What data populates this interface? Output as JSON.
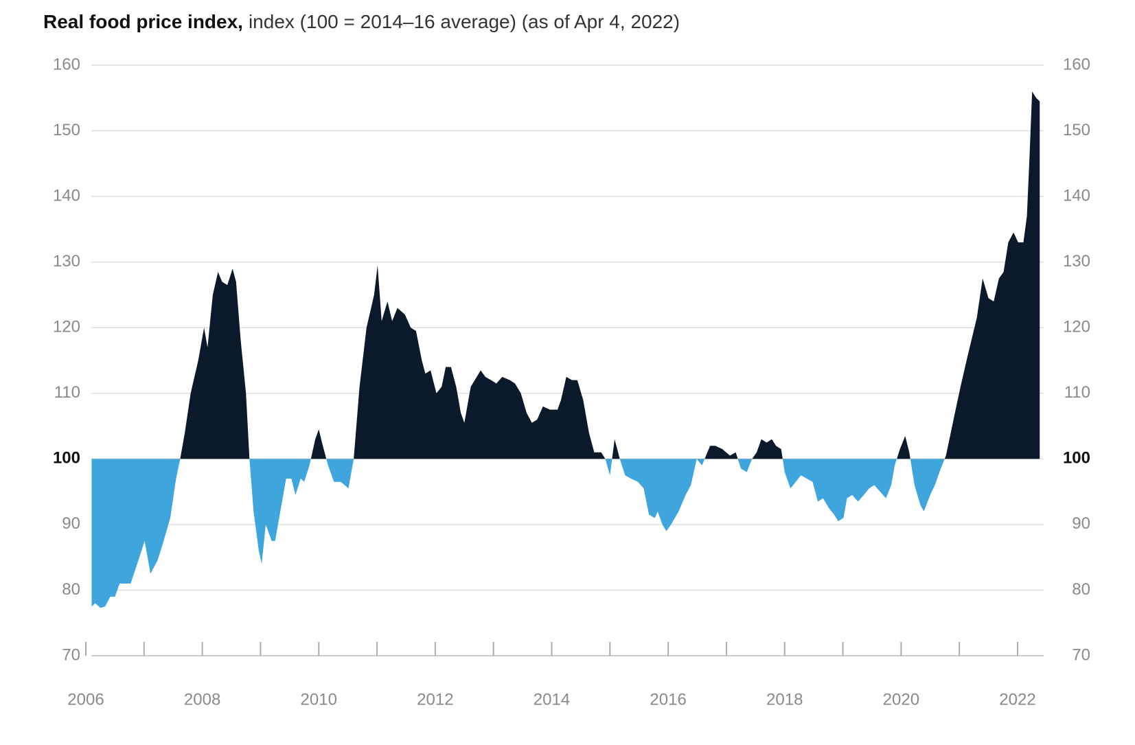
{
  "chart_data": {
    "type": "area",
    "title": "Real food price index,",
    "subtitle": "index (100 = 2014–16 average) (as of Apr 4, 2022)",
    "baseline": 100,
    "color_above": "#0b1a2b",
    "color_below": "#3ea6dd",
    "grid": true,
    "ylim": [
      70,
      160
    ],
    "yticks": [
      70,
      80,
      90,
      100,
      110,
      120,
      130,
      140,
      150,
      160
    ],
    "xlim": [
      2006,
      2022.4
    ],
    "xticks": [
      2006,
      2008,
      2010,
      2012,
      2014,
      2016,
      2018,
      2020,
      2022
    ],
    "xminorticks": [
      2007,
      2009,
      2011,
      2013,
      2015,
      2017,
      2019,
      2021
    ],
    "x": [
      2006.1,
      2006.16,
      2006.25,
      2006.33,
      2006.42,
      2006.5,
      2006.58,
      2006.77,
      2006.92,
      2007.01,
      2007.11,
      2007.23,
      2007.32,
      2007.45,
      2007.55,
      2007.62,
      2007.7,
      2007.8,
      2007.93,
      2008.03,
      2008.09,
      2008.18,
      2008.27,
      2008.34,
      2008.43,
      2008.52,
      2008.58,
      2008.66,
      2008.75,
      2008.81,
      2008.88,
      2008.97,
      2009.02,
      2009.09,
      2009.19,
      2009.25,
      2009.34,
      2009.44,
      2009.53,
      2009.6,
      2009.69,
      2009.75,
      2009.84,
      2009.94,
      2010.0,
      2010.07,
      2010.16,
      2010.26,
      2010.38,
      2010.51,
      2010.6,
      2010.7,
      2010.82,
      2010.95,
      2011.01,
      2011.08,
      2011.18,
      2011.26,
      2011.35,
      2011.48,
      2011.58,
      2011.67,
      2011.77,
      2011.83,
      2011.92,
      2012.02,
      2012.11,
      2012.18,
      2012.27,
      2012.36,
      2012.44,
      2012.5,
      2012.61,
      2012.78,
      2012.86,
      2012.96,
      2013.05,
      2013.15,
      2013.28,
      2013.37,
      2013.47,
      2013.57,
      2013.66,
      2013.75,
      2013.85,
      2013.97,
      2014.1,
      2014.16,
      2014.25,
      2014.35,
      2014.44,
      2014.54,
      2014.64,
      2014.73,
      2014.85,
      2014.92,
      2015.0,
      2015.08,
      2015.17,
      2015.26,
      2015.36,
      2015.48,
      2015.58,
      2015.67,
      2015.77,
      2015.82,
      2015.9,
      2015.97,
      2016.05,
      2016.18,
      2016.3,
      2016.39,
      2016.49,
      2016.58,
      2016.65,
      2016.72,
      2016.81,
      2016.93,
      2017.06,
      2017.16,
      2017.25,
      2017.35,
      2017.44,
      2017.52,
      2017.6,
      2017.69,
      2017.78,
      2017.85,
      2017.94,
      2018.0,
      2018.1,
      2018.19,
      2018.28,
      2018.38,
      2018.48,
      2018.57,
      2018.66,
      2018.76,
      2018.85,
      2018.92,
      2019.01,
      2019.07,
      2019.16,
      2019.26,
      2019.36,
      2019.45,
      2019.54,
      2019.64,
      2019.74,
      2019.83,
      2019.89,
      2019.98,
      2020.07,
      2020.14,
      2020.23,
      2020.33,
      2020.39,
      2020.5,
      2020.58,
      2020.68,
      2020.77,
      2020.9,
      2021.02,
      2021.15,
      2021.3,
      2021.4,
      2021.5,
      2021.59,
      2021.68,
      2021.76,
      2021.84,
      2021.93,
      2022.01,
      2022.1,
      2022.16,
      2022.2,
      2022.25,
      2022.32,
      2022.38
    ],
    "values": [
      77.5,
      78,
      77.3,
      77.5,
      79,
      79,
      81,
      81,
      85,
      87.5,
      82.5,
      84.5,
      87,
      91,
      97,
      100,
      104,
      110,
      115,
      120,
      117,
      125,
      128.5,
      127,
      126.5,
      129,
      127,
      118,
      110,
      100,
      92,
      86,
      84,
      90,
      87.5,
      87.5,
      92,
      97,
      97,
      94.5,
      97,
      96.5,
      99,
      103,
      104.5,
      102,
      99,
      96.5,
      96.5,
      95.5,
      100,
      111,
      120,
      125,
      129.5,
      121,
      124,
      121,
      123,
      122,
      120,
      119.5,
      115,
      113,
      113.5,
      110,
      111,
      114,
      114,
      111,
      107,
      105.5,
      111,
      113.5,
      112.5,
      112,
      111.5,
      112.5,
      112,
      111.5,
      110,
      107,
      105.5,
      106,
      108,
      107.5,
      107.5,
      109,
      112.5,
      112,
      112,
      109,
      104,
      101,
      101,
      100,
      97.5,
      103,
      100,
      97.5,
      97,
      96.5,
      95.5,
      91.5,
      91,
      92,
      90,
      89,
      90,
      92,
      94.5,
      96,
      100,
      99,
      100.5,
      102,
      102,
      101.5,
      100.5,
      101,
      98.5,
      98,
      100,
      101,
      103,
      102.5,
      103,
      102,
      101.5,
      98,
      95.5,
      96.5,
      97.5,
      97,
      96.5,
      93.5,
      94,
      92.5,
      91.5,
      90.5,
      91,
      94,
      94.5,
      93.5,
      94.5,
      95.5,
      96,
      95,
      94,
      96,
      99,
      101.5,
      103.5,
      101,
      96,
      93,
      92,
      94.5,
      96,
      98.5,
      100.5,
      106,
      111,
      116,
      121.5,
      127.5,
      124.5,
      124,
      127.5,
      128.5,
      133,
      134.5,
      133,
      133,
      137,
      145,
      156,
      155,
      154.5
    ]
  }
}
